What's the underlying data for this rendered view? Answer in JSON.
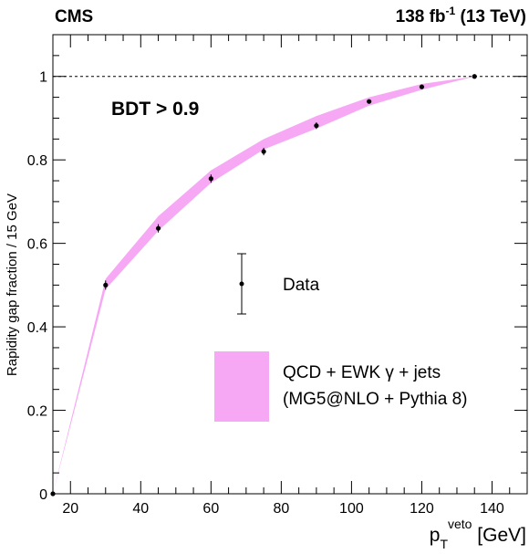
{
  "chart_data": {
    "type": "line",
    "experiment": "CMS",
    "lumi": {
      "value": "138 fb",
      "sup": "-1",
      "energy": " (13 TeV)"
    },
    "cut_label": "BDT > 0.9",
    "xlabel": {
      "main": "p",
      "sub": "T",
      "sup": "veto",
      "unit": " [GeV]"
    },
    "ylabel": "Rapidity gap fraction / 15 GeV",
    "xlim": [
      15,
      150
    ],
    "ylim": [
      0,
      1.1
    ],
    "xticks": [
      20,
      40,
      60,
      80,
      100,
      120,
      140
    ],
    "yticks": [
      0,
      0.2,
      0.4,
      0.6,
      0.8,
      1
    ],
    "reference_line": 1,
    "series": [
      {
        "name": "Data",
        "kind": "points",
        "x": [
          15,
          30,
          45,
          60,
          75,
          90,
          105,
          120,
          135
        ],
        "y": [
          0.0,
          0.5,
          0.636,
          0.755,
          0.82,
          0.882,
          0.94,
          0.975,
          1.0
        ],
        "err": [
          0.0,
          0.011,
          0.01,
          0.01,
          0.009,
          0.008,
          0.004,
          0.004,
          0.0
        ]
      },
      {
        "name": "QCD + EWK γ + jets",
        "name2": "(MG5@NLO + Pythia 8)",
        "kind": "band",
        "color": "#f7a8f5",
        "x": [
          15,
          30,
          45,
          60,
          75,
          90,
          105,
          120,
          135
        ],
        "lo": [
          0.0,
          0.49,
          0.63,
          0.745,
          0.825,
          0.875,
          0.93,
          0.968,
          1.0
        ],
        "hi": [
          0.0,
          0.515,
          0.665,
          0.775,
          0.85,
          0.905,
          0.95,
          0.982,
          1.0
        ]
      }
    ],
    "legend_position": "center-right"
  }
}
